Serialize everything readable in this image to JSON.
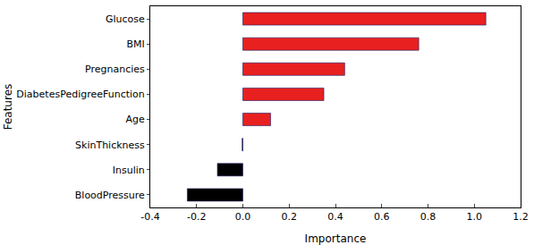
{
  "chart_data": {
    "type": "bar",
    "orientation": "horizontal",
    "xlabel": "Importance",
    "ylabel": "Features",
    "categories": [
      "Glucose",
      "BMI",
      "Pregnancies",
      "DiabetesPedigreeFunction",
      "Age",
      "SkinThickness",
      "Insulin",
      "BloodPressure"
    ],
    "values": [
      1.05,
      0.76,
      0.44,
      0.35,
      0.12,
      -0.003,
      -0.11,
      -0.24
    ],
    "colors": [
      "#e8201f",
      "#e8201f",
      "#e8201f",
      "#e8201f",
      "#e8201f",
      "#000000",
      "#000000",
      "#000000"
    ],
    "xlim": [
      -0.4,
      1.2
    ],
    "xticks": [
      -0.4,
      -0.2,
      {
        "value": 0,
        "label": "0.0"
      },
      0.2,
      0.4,
      0.6,
      0.8,
      {
        "value": 1,
        "label": "1.0"
      },
      1.2
    ],
    "grid": false
  }
}
